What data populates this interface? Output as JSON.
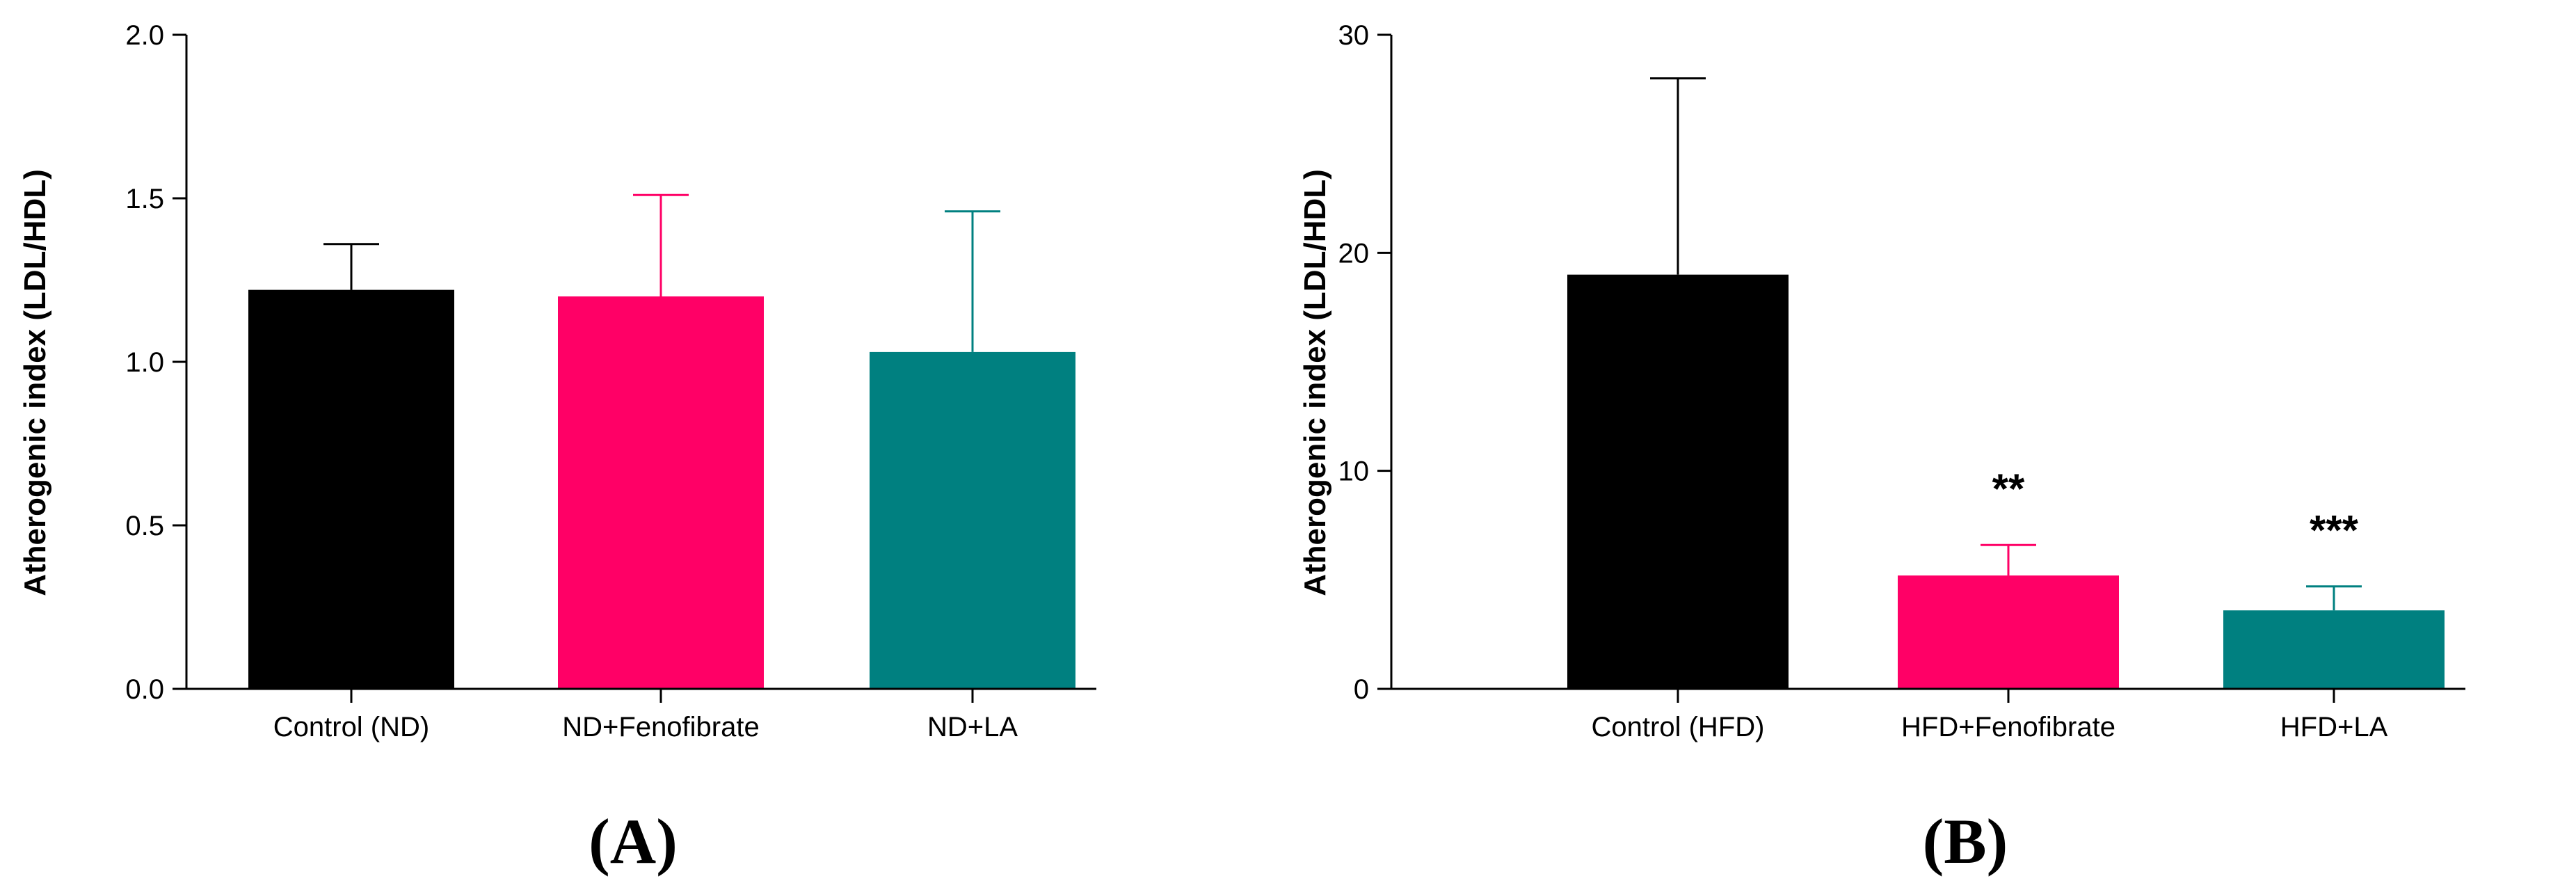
{
  "chart_data": [
    {
      "type": "bar",
      "panel_label": "(A)",
      "ylabel": "Atherogenic index (LDL/HDL)",
      "ylim": [
        0,
        2.0
      ],
      "yticks": [
        "0.0",
        "0.5",
        "1.0",
        "1.5",
        "2.0"
      ],
      "categories": [
        "Control (ND)",
        "ND+Fenofibrate",
        "ND+LA"
      ],
      "values": [
        1.22,
        1.2,
        1.03
      ],
      "error_upper": [
        0.14,
        0.31,
        0.43
      ],
      "colors": [
        "#000000",
        "#FF0066",
        "#008080"
      ],
      "significance": [
        "",
        "",
        ""
      ]
    },
    {
      "type": "bar",
      "panel_label": "(B)",
      "ylabel": "Atherogenic index (LDL/HDL)",
      "ylim": [
        0,
        30
      ],
      "yticks": [
        "0",
        "10",
        "20",
        "30"
      ],
      "categories": [
        "Control (HFD)",
        "HFD+Fenofibrate",
        "HFD+LA"
      ],
      "values": [
        19.0,
        5.2,
        3.6
      ],
      "error_upper": [
        9.0,
        1.4,
        1.1
      ],
      "colors": [
        "#000000",
        "#FF0066",
        "#008080"
      ],
      "significance": [
        "",
        "**",
        "***"
      ]
    }
  ]
}
